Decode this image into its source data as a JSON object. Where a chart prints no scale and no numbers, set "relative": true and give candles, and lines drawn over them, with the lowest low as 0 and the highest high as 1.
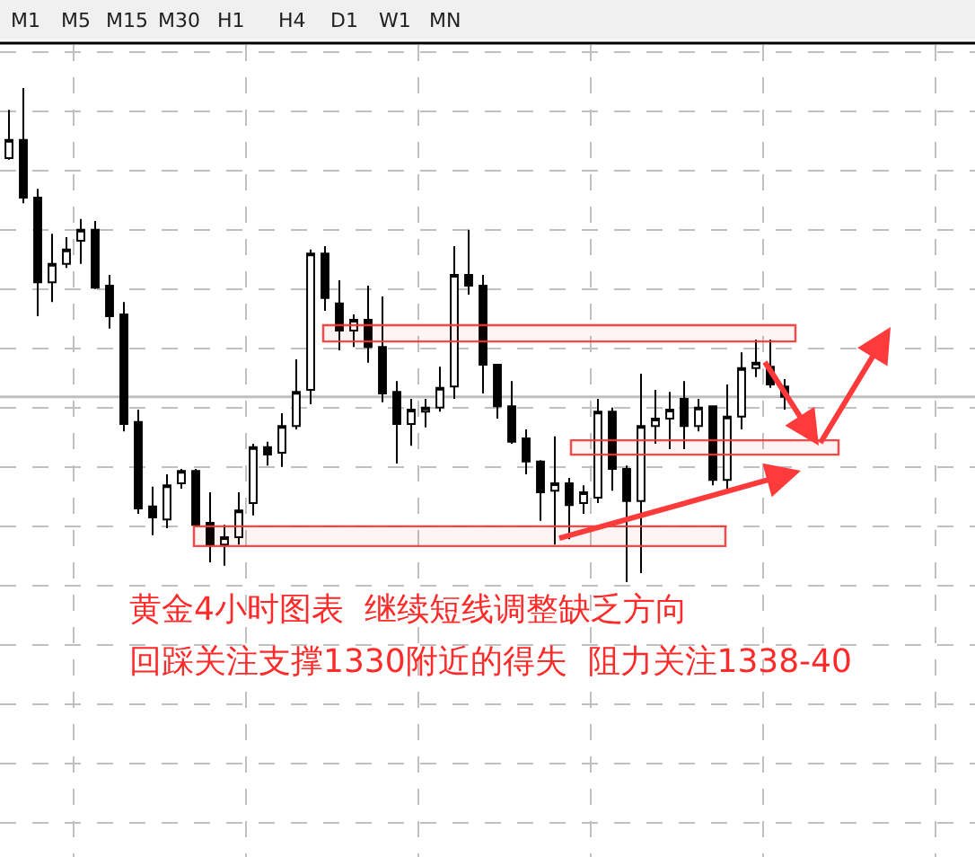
{
  "chart_data": {
    "type": "candlestick",
    "relative": true,
    "tick_labels": false,
    "grid": true,
    "legend": false,
    "categories": [
      null,
      null,
      null,
      null,
      null,
      null,
      null,
      null,
      null,
      null,
      null,
      null,
      null,
      null,
      null,
      null,
      null,
      null,
      null,
      null,
      null,
      null,
      null,
      null,
      null,
      null,
      null,
      null,
      null,
      null,
      null,
      null,
      null,
      null,
      null,
      null,
      null,
      null,
      null,
      null,
      null,
      null,
      null,
      null,
      null,
      null,
      null,
      null,
      null,
      null,
      null,
      null,
      null,
      null,
      null
    ],
    "ohlc": [
      [
        0.858,
        0.956,
        0.855,
        0.895
      ],
      [
        0.895,
        1.0,
        0.767,
        0.778
      ],
      [
        0.778,
        0.796,
        0.538,
        0.607
      ],
      [
        0.607,
        0.705,
        0.567,
        0.644
      ],
      [
        0.644,
        0.698,
        0.636,
        0.673
      ],
      [
        0.691,
        0.735,
        0.644,
        0.713
      ],
      [
        0.713,
        0.731,
        0.593,
        0.596
      ],
      [
        0.6,
        0.622,
        0.513,
        0.538
      ],
      [
        0.542,
        0.567,
        0.305,
        0.32
      ],
      [
        0.324,
        0.349,
        0.138,
        0.149
      ],
      [
        0.153,
        0.193,
        0.095,
        0.131
      ],
      [
        0.127,
        0.218,
        0.109,
        0.196
      ],
      [
        0.2,
        0.229,
        0.189,
        0.225
      ],
      [
        0.225,
        0.229,
        0.113,
        0.116
      ],
      [
        0.12,
        0.182,
        0.04,
        0.076
      ],
      [
        0.076,
        0.116,
        0.033,
        0.091
      ],
      [
        0.091,
        0.182,
        0.076,
        0.145
      ],
      [
        0.16,
        0.28,
        0.135,
        0.273
      ],
      [
        0.273,
        0.284,
        0.236,
        0.258
      ],
      [
        0.262,
        0.342,
        0.233,
        0.316
      ],
      [
        0.316,
        0.451,
        0.309,
        0.385
      ],
      [
        0.389,
        0.673,
        0.36,
        0.665
      ],
      [
        0.665,
        0.68,
        0.549,
        0.575
      ],
      [
        0.564,
        0.611,
        0.469,
        0.509
      ],
      [
        0.509,
        0.542,
        0.476,
        0.531
      ],
      [
        0.531,
        0.6,
        0.444,
        0.476
      ],
      [
        0.476,
        0.578,
        0.364,
        0.382
      ],
      [
        0.385,
        0.407,
        0.24,
        0.32
      ],
      [
        0.32,
        0.371,
        0.276,
        0.349
      ],
      [
        0.345,
        0.371,
        0.313,
        0.353
      ],
      [
        0.353,
        0.436,
        0.345,
        0.393
      ],
      [
        0.396,
        0.68,
        0.371,
        0.622
      ],
      [
        0.622,
        0.713,
        0.582,
        0.6
      ],
      [
        0.6,
        0.622,
        0.382,
        0.44
      ],
      [
        0.44,
        0.44,
        0.331,
        0.356
      ],
      [
        0.356,
        0.407,
        0.28,
        0.284
      ],
      [
        0.291,
        0.309,
        0.218,
        0.244
      ],
      [
        0.244,
        0.247,
        0.124,
        0.182
      ],
      [
        0.185,
        0.295,
        0.076,
        0.2
      ],
      [
        0.2,
        0.211,
        0.087,
        0.156
      ],
      [
        0.16,
        0.196,
        0.138,
        0.182
      ],
      [
        0.171,
        0.371,
        0.16,
        0.345
      ],
      [
        0.345,
        0.353,
        0.185,
        0.229
      ],
      [
        0.229,
        0.236,
        0.0,
        0.164
      ],
      [
        0.164,
        0.422,
        0.018,
        0.316
      ],
      [
        0.316,
        0.389,
        0.28,
        0.331
      ],
      [
        0.331,
        0.385,
        0.269,
        0.349
      ],
      [
        0.371,
        0.407,
        0.269,
        0.316
      ],
      [
        0.316,
        0.371,
        0.305,
        0.353
      ],
      [
        0.356,
        0.356,
        0.196,
        0.207
      ],
      [
        0.207,
        0.4,
        0.189,
        0.335
      ],
      [
        0.335,
        0.465,
        0.309,
        0.433
      ],
      [
        0.433,
        0.491,
        0.415,
        0.444
      ],
      [
        0.436,
        0.491,
        0.393,
        0.4
      ],
      [
        0.396,
        0.411,
        0.349,
        0.375
      ]
    ],
    "ref_lines": [
      {
        "axis": "y",
        "value": 0.375,
        "color": "#c0c0c0"
      }
    ],
    "bands": [
      {
        "axis": "y",
        "from": 0.487,
        "to": 0.52,
        "color": "#ff3333"
      },
      {
        "axis": "y",
        "from": 0.073,
        "to": 0.113,
        "color": "#ff3333"
      },
      {
        "axis": "y",
        "from": 0.258,
        "to": 0.287,
        "color": "#ff3333"
      }
    ],
    "annotations": [
      "黄金4小时图表  继续短线调整缺乏方向",
      "回踩关注支撑1330附近的得失  阻力关注1338-40",
      "M1",
      "M5",
      "M15",
      "M30",
      "H1",
      "H4",
      "D1",
      "W1",
      "MN"
    ]
  }
}
